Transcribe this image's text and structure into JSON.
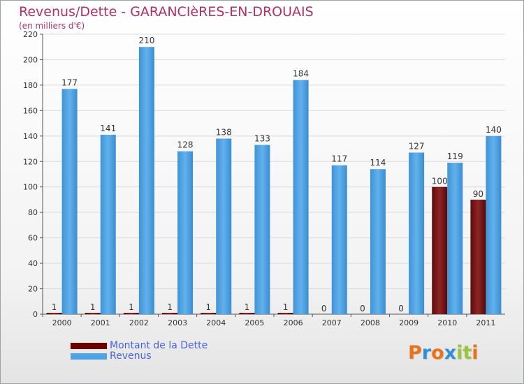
{
  "header": {
    "title": "Revenus/Dette - GARANCIèRES-EN-DROUAIS",
    "subtitle": "(en milliers d'€)"
  },
  "legend": {
    "items": [
      {
        "label": "Montant de la Dette",
        "color": "#6b0000"
      },
      {
        "label": "Revenus",
        "color": "#4ea3e4"
      }
    ]
  },
  "brand": {
    "letters": [
      "P",
      "r",
      "o",
      "x",
      "i",
      "t",
      "i"
    ],
    "colors": [
      "#e8731a",
      "#2f8fd8",
      "#e8731a",
      "#2f8fd8",
      "#9cc43a",
      "#9cc43a",
      "#e8731a"
    ]
  },
  "colors": {
    "debt": "#8a1b1b",
    "debt_dark": "#5a0000",
    "revenue": "#54a8e8",
    "revenue_dark": "#2f86cc",
    "grid": "#dcdcdc",
    "axis": "#555555",
    "text": "#333333"
  },
  "chart_data": {
    "type": "bar",
    "title": "Revenus/Dette - GARANCIèRES-EN-DROUAIS",
    "ylabel": "(en milliers d'€)",
    "xlabel": "",
    "categories": [
      "2000",
      "2001",
      "2002",
      "2003",
      "2004",
      "2005",
      "2006",
      "2007",
      "2008",
      "2009",
      "2010",
      "2011"
    ],
    "series": [
      {
        "name": "Montant de la Dette",
        "values": [
          1,
          1,
          1,
          1,
          1,
          1,
          1,
          0,
          0,
          0,
          100,
          90
        ]
      },
      {
        "name": "Revenus",
        "values": [
          177,
          141,
          210,
          128,
          138,
          133,
          184,
          117,
          114,
          127,
          119,
          140
        ]
      }
    ],
    "ylim": [
      0,
      220
    ],
    "yticks": [
      0,
      20,
      40,
      60,
      80,
      100,
      120,
      140,
      160,
      180,
      200,
      220
    ],
    "grid": true,
    "legend": "bottom-left"
  }
}
